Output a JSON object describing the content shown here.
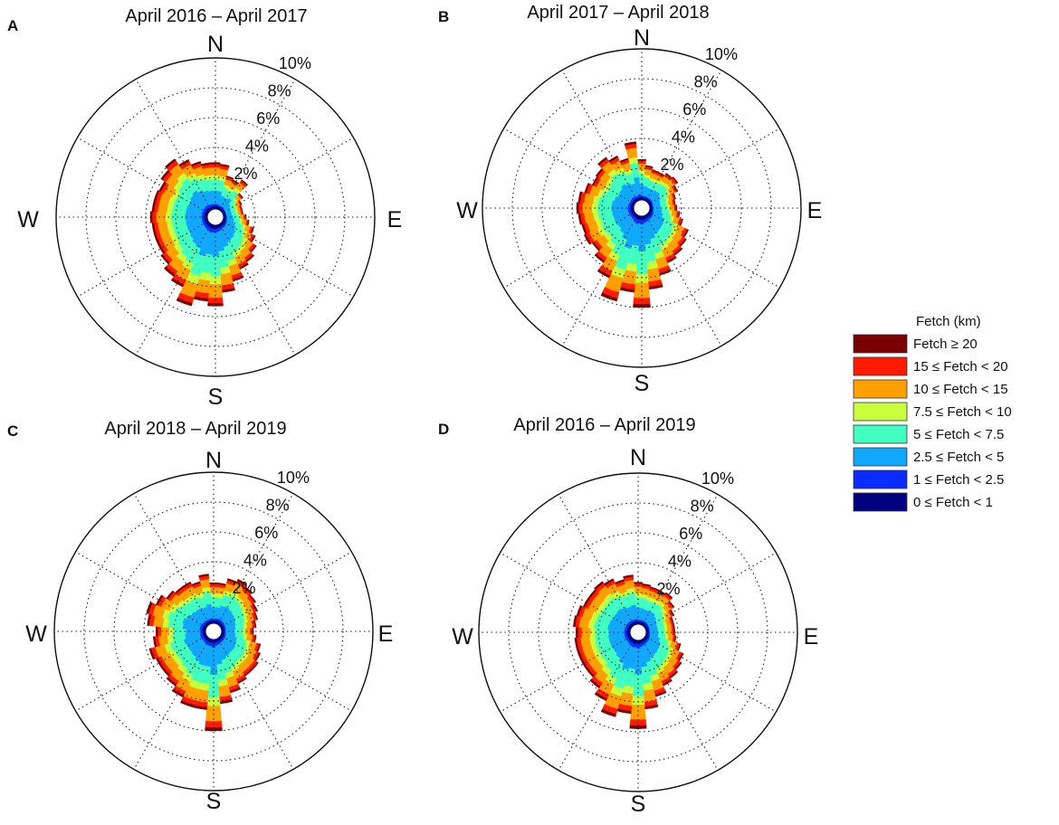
{
  "figure_title": "",
  "legend": {
    "title": "Fetch (km)",
    "items": [
      {
        "label": "Fetch ≥ 20",
        "color": "#7a0000"
      },
      {
        "label": "15 ≤ Fetch < 20",
        "color": "#ff1a00"
      },
      {
        "label": "10 ≤ Fetch < 15",
        "color": "#ffa000"
      },
      {
        "label": "7.5 ≤ Fetch < 10",
        "color": "#c8ff3c"
      },
      {
        "label": "5 ≤ Fetch < 7.5",
        "color": "#40ffc0"
      },
      {
        "label": "2.5 ≤ Fetch < 5",
        "color": "#10a8ff"
      },
      {
        "label": "1 ≤ Fetch < 2.5",
        "color": "#0a2cff"
      },
      {
        "label": "0 ≤ Fetch < 1",
        "color": "#000080"
      }
    ]
  },
  "chart_data": [
    {
      "type": "polar-stacked-bar",
      "panel": "A",
      "title": "April 2016 – April 2017",
      "compass": [
        "N",
        "E",
        "S",
        "W"
      ],
      "ring_labels": [
        "2%",
        "4%",
        "6%",
        "8%",
        "10%"
      ],
      "rmax": 10,
      "sectors": 36,
      "bin_order": [
        "0-1",
        "1-2.5",
        "2.5-5",
        "5-7.5",
        "7.5-10",
        "10-15",
        "15-20",
        ">=20"
      ],
      "totals": [
        3.0,
        2.9,
        2.2,
        2.1,
        2.4,
        1.6,
        1.3,
        1.2,
        1.2,
        1.4,
        1.6,
        2.0,
        2.3,
        2.7,
        3.0,
        3.2,
        3.8,
        4.4,
        5.3,
        5.0,
        5.5,
        4.5,
        4.2,
        3.8,
        3.6,
        3.6,
        3.6,
        3.7,
        3.6,
        3.6,
        3.5,
        3.8,
        4.1,
        3.6,
        3.2,
        3.0
      ]
    },
    {
      "type": "polar-stacked-bar",
      "panel": "B",
      "title": "April 2017 – April 2018",
      "compass": [
        "N",
        "E",
        "S",
        "W"
      ],
      "ring_labels": [
        "2%",
        "4%",
        "6%",
        "8%",
        "10%"
      ],
      "rmax": 10,
      "sectors": 36,
      "bin_order": [
        "0-1",
        "1-2.5",
        "2.5-5",
        "5-7.5",
        "7.5-10",
        "10-15",
        "15-20",
        ">=20"
      ],
      "totals": [
        2.6,
        2.2,
        2.0,
        2.0,
        2.2,
        2.3,
        2.0,
        1.7,
        1.6,
        1.7,
        1.9,
        2.2,
        2.8,
        3.0,
        3.2,
        3.4,
        4.0,
        4.8,
        6.0,
        5.0,
        5.8,
        4.5,
        3.8,
        3.4,
        3.6,
        3.5,
        3.6,
        3.7,
        3.6,
        3.3,
        3.0,
        3.1,
        3.5,
        3.2,
        2.8,
        3.8
      ]
    },
    {
      "type": "polar-stacked-bar",
      "panel": "C",
      "title": "April 2018 – April 2019",
      "compass": [
        "N",
        "E",
        "S",
        "W"
      ],
      "ring_labels": [
        "2%",
        "4%",
        "6%",
        "8%",
        "10%"
      ],
      "rmax": 10,
      "sectors": 36,
      "bin_order": [
        "0-1",
        "1-2.5",
        "2.5-5",
        "5-7.5",
        "7.5-10",
        "10-15",
        "15-20",
        ">=20"
      ],
      "totals": [
        2.6,
        2.6,
        3.0,
        3.2,
        3.0,
        2.8,
        2.6,
        2.4,
        2.2,
        2.0,
        2.2,
        2.6,
        2.8,
        3.0,
        3.0,
        3.2,
        3.6,
        4.2,
        6.0,
        4.6,
        4.6,
        4.2,
        3.8,
        3.6,
        3.6,
        3.8,
        3.4,
        3.2,
        3.8,
        4.0,
        3.6,
        3.2,
        3.0,
        3.0,
        2.8,
        3.2
      ]
    },
    {
      "type": "polar-stacked-bar",
      "panel": "D",
      "title": "April 2016 – April 2019",
      "compass": [
        "N",
        "E",
        "S",
        "W"
      ],
      "ring_labels": [
        "2%",
        "4%",
        "6%",
        "8%",
        "10%"
      ],
      "rmax": 10,
      "sectors": 36,
      "bin_order": [
        "0-1",
        "1-2.5",
        "2.5-5",
        "5-7.5",
        "7.5-10",
        "10-15",
        "15-20",
        ">=20"
      ],
      "totals": [
        2.7,
        2.6,
        2.5,
        2.5,
        2.6,
        2.3,
        2.0,
        1.8,
        1.8,
        1.8,
        1.9,
        2.3,
        2.7,
        2.9,
        3.1,
        3.3,
        3.8,
        4.5,
        5.8,
        4.8,
        5.2,
        4.4,
        3.9,
        3.6,
        3.6,
        3.6,
        3.6,
        3.5,
        3.7,
        3.6,
        3.4,
        3.4,
        3.5,
        3.3,
        3.0,
        3.2
      ]
    }
  ]
}
